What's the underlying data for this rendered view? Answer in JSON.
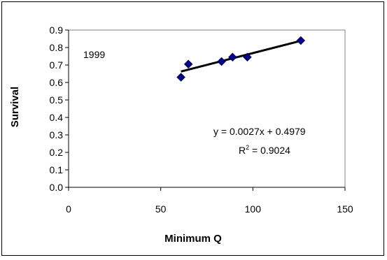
{
  "chart_data": {
    "type": "scatter",
    "xlabel": "Minimum Q",
    "ylabel": "Survival",
    "xlim": [
      0,
      150
    ],
    "ylim": [
      0.0,
      0.9
    ],
    "x_ticks": [
      "0",
      "50",
      "100",
      "150"
    ],
    "y_ticks": [
      "0.0",
      "0.1",
      "0.2",
      "0.3",
      "0.4",
      "0.5",
      "0.6",
      "0.7",
      "0.8",
      "0.9"
    ],
    "grid": false,
    "series": [
      {
        "marker": "diamond",
        "color": "#000080",
        "points": [
          {
            "x": 61,
            "y": 0.63
          },
          {
            "x": 65,
            "y": 0.705
          },
          {
            "x": 83,
            "y": 0.72
          },
          {
            "x": 89,
            "y": 0.745
          },
          {
            "x": 97,
            "y": 0.745
          },
          {
            "x": 126,
            "y": 0.84
          }
        ]
      }
    ],
    "trendline": {
      "slope": 0.0027,
      "intercept": 0.4979,
      "x_range": [
        61,
        126
      ],
      "color": "#000000"
    },
    "annotations": {
      "year_label": "1999",
      "equation": "y = 0.0027x + 0.4979",
      "r2_prefix": "R",
      "r2_sup": "2",
      "r2_value": " = 0.9024"
    },
    "plot_border_color": "#808080",
    "frame_color": "#000000"
  }
}
